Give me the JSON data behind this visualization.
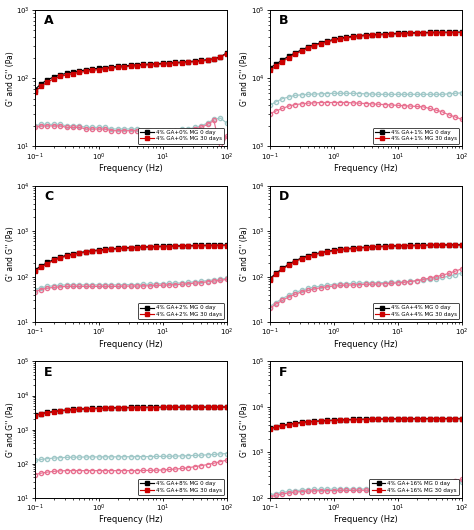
{
  "legend_labels": [
    [
      "4% GA+0% MG 0 day",
      "4% GA+0% MG 30 days"
    ],
    [
      "4% GA+1% MG 0 day",
      "4% GA+1% MG 30 days"
    ],
    [
      "4% GA+2% MG 0 day",
      "4% GA+2% MG 30 days"
    ],
    [
      "4% GA+4% MG 0 day",
      "4% GA+4% MG 30 days"
    ],
    [
      "4% GA+8% MG 0 day",
      "4% GA+8% MG 30 days"
    ],
    [
      "4% GA+16% MG 0 day",
      "4% GA+16% MG 30 days"
    ]
  ],
  "freq": [
    0.1,
    0.126,
    0.158,
    0.2,
    0.251,
    0.316,
    0.398,
    0.501,
    0.631,
    0.794,
    1.0,
    1.259,
    1.585,
    1.995,
    2.512,
    3.162,
    3.981,
    5.012,
    6.31,
    7.943,
    10.0,
    12.589,
    15.849,
    19.953,
    25.119,
    31.623,
    39.811,
    50.119,
    63.096,
    79.433,
    100.0
  ],
  "G_prime_A_0day": [
    68,
    82,
    95,
    104,
    112,
    118,
    123,
    128,
    132,
    136,
    140,
    143,
    146,
    149,
    152,
    154,
    157,
    159,
    161,
    163,
    165,
    167,
    170,
    172,
    175,
    178,
    182,
    187,
    193,
    205,
    235
  ],
  "G_pp_A_0day": [
    20,
    21,
    21,
    21,
    21,
    20,
    20,
    20,
    19,
    19,
    19,
    19,
    18,
    18,
    18,
    18,
    18,
    17,
    17,
    17,
    17,
    17,
    17,
    18,
    18,
    19,
    20,
    22,
    25,
    26,
    22
  ],
  "G_prime_A_30day": [
    63,
    76,
    88,
    98,
    106,
    112,
    117,
    122,
    126,
    130,
    134,
    138,
    141,
    144,
    147,
    150,
    152,
    155,
    157,
    159,
    161,
    163,
    166,
    168,
    171,
    174,
    178,
    183,
    189,
    201,
    230
  ],
  "G_pp_A_30day": [
    19,
    20,
    20,
    20,
    20,
    19,
    19,
    19,
    18,
    18,
    18,
    18,
    17,
    17,
    17,
    17,
    17,
    16,
    16,
    16,
    16,
    16,
    17,
    17,
    17,
    18,
    19,
    21,
    24,
    9,
    14
  ],
  "G_prime_B_0day": [
    14000,
    16000,
    18500,
    21000,
    23500,
    26000,
    28500,
    31000,
    33000,
    35000,
    37000,
    38500,
    40000,
    41000,
    42000,
    43000,
    43500,
    44000,
    44500,
    45000,
    45500,
    46000,
    46200,
    46500,
    46700,
    46900,
    47000,
    47100,
    47200,
    47300,
    47400
  ],
  "G_pp_B_0day": [
    4000,
    4500,
    5000,
    5300,
    5600,
    5700,
    5800,
    5850,
    5900,
    5950,
    6000,
    6000,
    6000,
    6000,
    5950,
    5900,
    5850,
    5800,
    5800,
    5800,
    5800,
    5800,
    5800,
    5800,
    5800,
    5800,
    5800,
    5800,
    5900,
    6000,
    6100
  ],
  "G_prime_B_30day": [
    13000,
    15000,
    17500,
    20000,
    22500,
    25000,
    27500,
    30000,
    32000,
    34000,
    36000,
    37500,
    39000,
    40000,
    41000,
    42000,
    42500,
    43000,
    43500,
    44000,
    44500,
    45000,
    45200,
    45500,
    45700,
    46000,
    46200,
    46400,
    46500,
    46600,
    46700
  ],
  "G_pp_B_30day": [
    3000,
    3300,
    3600,
    3900,
    4100,
    4200,
    4300,
    4350,
    4400,
    4400,
    4400,
    4400,
    4400,
    4350,
    4300,
    4250,
    4200,
    4150,
    4100,
    4050,
    4000,
    3950,
    3900,
    3850,
    3800,
    3600,
    3400,
    3200,
    2900,
    2700,
    2500
  ],
  "G_prime_C_0day": [
    140,
    170,
    205,
    240,
    270,
    295,
    318,
    338,
    356,
    372,
    386,
    399,
    410,
    420,
    429,
    437,
    444,
    451,
    457,
    462,
    467,
    471,
    475,
    479,
    482,
    485,
    488,
    490,
    492,
    494,
    496
  ],
  "G_pp_C_0day": [
    52,
    57,
    61,
    63,
    65,
    66,
    66,
    66,
    66,
    66,
    66,
    66,
    66,
    66,
    67,
    67,
    67,
    68,
    68,
    69,
    70,
    71,
    72,
    73,
    75,
    77,
    79,
    82,
    85,
    88,
    92
  ],
  "G_prime_C_30day": [
    130,
    160,
    194,
    228,
    258,
    283,
    306,
    326,
    344,
    360,
    374,
    387,
    398,
    408,
    417,
    425,
    432,
    439,
    445,
    450,
    455,
    459,
    463,
    467,
    470,
    473,
    476,
    478,
    480,
    482,
    484
  ],
  "G_pp_C_30day": [
    47,
    52,
    56,
    58,
    60,
    61,
    61,
    61,
    61,
    61,
    61,
    61,
    61,
    61,
    62,
    62,
    62,
    63,
    63,
    64,
    65,
    66,
    67,
    68,
    70,
    72,
    74,
    77,
    80,
    83,
    87
  ],
  "G_prime_D_0day": [
    90,
    118,
    152,
    188,
    224,
    257,
    287,
    314,
    338,
    360,
    379,
    396,
    411,
    424,
    435,
    445,
    454,
    461,
    468,
    474,
    479,
    483,
    487,
    490,
    493,
    496,
    498,
    500,
    502,
    503,
    504
  ],
  "G_pp_D_0day": [
    22,
    27,
    33,
    39,
    45,
    50,
    55,
    59,
    62,
    65,
    67,
    69,
    70,
    71,
    72,
    73,
    73,
    74,
    74,
    75,
    76,
    77,
    79,
    81,
    84,
    87,
    91,
    96,
    102,
    110,
    120
  ],
  "G_prime_D_30day": [
    85,
    112,
    145,
    180,
    215,
    248,
    277,
    304,
    328,
    350,
    369,
    386,
    401,
    414,
    425,
    435,
    444,
    451,
    458,
    464,
    469,
    473,
    477,
    480,
    483,
    486,
    488,
    490,
    492,
    493,
    494
  ],
  "G_pp_D_30day": [
    20,
    25,
    30,
    36,
    41,
    46,
    50,
    54,
    57,
    60,
    62,
    64,
    65,
    66,
    67,
    68,
    68,
    69,
    70,
    71,
    73,
    75,
    78,
    82,
    87,
    93,
    100,
    108,
    118,
    132,
    148
  ],
  "G_prime_E_0day": [
    2700,
    2950,
    3200,
    3430,
    3620,
    3780,
    3910,
    4020,
    4110,
    4190,
    4260,
    4320,
    4370,
    4415,
    4450,
    4480,
    4505,
    4526,
    4544,
    4559,
    4572,
    4583,
    4592,
    4600,
    4607,
    4613,
    4618,
    4623,
    4627,
    4630,
    4633
  ],
  "G_pp_E_0day": [
    125,
    134,
    141,
    147,
    151,
    154,
    156,
    157,
    158,
    159,
    159,
    160,
    160,
    160,
    161,
    161,
    162,
    162,
    163,
    164,
    165,
    166,
    168,
    170,
    173,
    176,
    179,
    183,
    188,
    194,
    200
  ],
  "G_prime_E_30day": [
    2600,
    2850,
    3100,
    3330,
    3520,
    3680,
    3810,
    3920,
    4010,
    4090,
    4160,
    4220,
    4270,
    4315,
    4350,
    4380,
    4405,
    4426,
    4444,
    4459,
    4472,
    4483,
    4492,
    4500,
    4507,
    4513,
    4518,
    4523,
    4527,
    4530,
    4533
  ],
  "G_pp_E_30day": [
    48,
    53,
    57,
    60,
    62,
    63,
    63,
    63,
    63,
    63,
    63,
    63,
    63,
    63,
    63,
    63,
    63,
    64,
    64,
    65,
    66,
    68,
    70,
    73,
    77,
    82,
    88,
    95,
    104,
    115,
    128
  ],
  "G_prime_F_0day": [
    3400,
    3650,
    3920,
    4180,
    4400,
    4580,
    4730,
    4850,
    4950,
    5040,
    5120,
    5190,
    5250,
    5300,
    5345,
    5383,
    5415,
    5441,
    5463,
    5481,
    5496,
    5508,
    5518,
    5527,
    5534,
    5540,
    5545,
    5549,
    5553,
    5556,
    5558
  ],
  "G_pp_F_0day": [
    115,
    124,
    132,
    139,
    144,
    148,
    151,
    153,
    154,
    155,
    155,
    156,
    156,
    156,
    157,
    157,
    158,
    159,
    160,
    161,
    163,
    165,
    168,
    171,
    175,
    180,
    186,
    193,
    201,
    211,
    222
  ],
  "G_prime_F_30day": [
    3300,
    3550,
    3820,
    4080,
    4300,
    4480,
    4630,
    4750,
    4850,
    4940,
    5020,
    5090,
    5150,
    5200,
    5245,
    5283,
    5315,
    5341,
    5363,
    5381,
    5396,
    5408,
    5418,
    5427,
    5434,
    5440,
    5445,
    5449,
    5453,
    5456,
    5458
  ],
  "G_pp_F_30day": [
    105,
    114,
    122,
    129,
    134,
    138,
    141,
    143,
    144,
    145,
    145,
    146,
    146,
    146,
    147,
    147,
    148,
    149,
    150,
    152,
    154,
    157,
    161,
    166,
    172,
    180,
    190,
    202,
    217,
    234,
    254
  ],
  "panels_info": [
    {
      "key": "A",
      "ylim": [
        10,
        1000
      ],
      "yticks": [
        10,
        100,
        1000
      ]
    },
    {
      "key": "B",
      "ylim": [
        1000,
        100000
      ],
      "yticks": [
        1000,
        10000,
        100000
      ]
    },
    {
      "key": "C",
      "ylim": [
        10,
        10000
      ],
      "yticks": [
        10,
        100,
        1000,
        10000
      ]
    },
    {
      "key": "D",
      "ylim": [
        10,
        10000
      ],
      "yticks": [
        10,
        100,
        1000,
        10000
      ]
    },
    {
      "key": "E",
      "ylim": [
        10,
        100000
      ],
      "yticks": [
        10,
        100,
        1000,
        10000,
        100000
      ]
    },
    {
      "key": "F",
      "ylim": [
        100,
        100000
      ],
      "yticks": [
        100,
        1000,
        10000,
        100000
      ]
    }
  ],
  "color_0day_Gp": "#000000",
  "color_0day_Gpp": "#a0c8c8",
  "color_30day_Gp": "#cc0000",
  "color_30day_Gpp": "#e87090",
  "xlabel": "Frequency (Hz)",
  "ylabel": "G' and G'' (Pa)",
  "bg_color": "#ffffff"
}
